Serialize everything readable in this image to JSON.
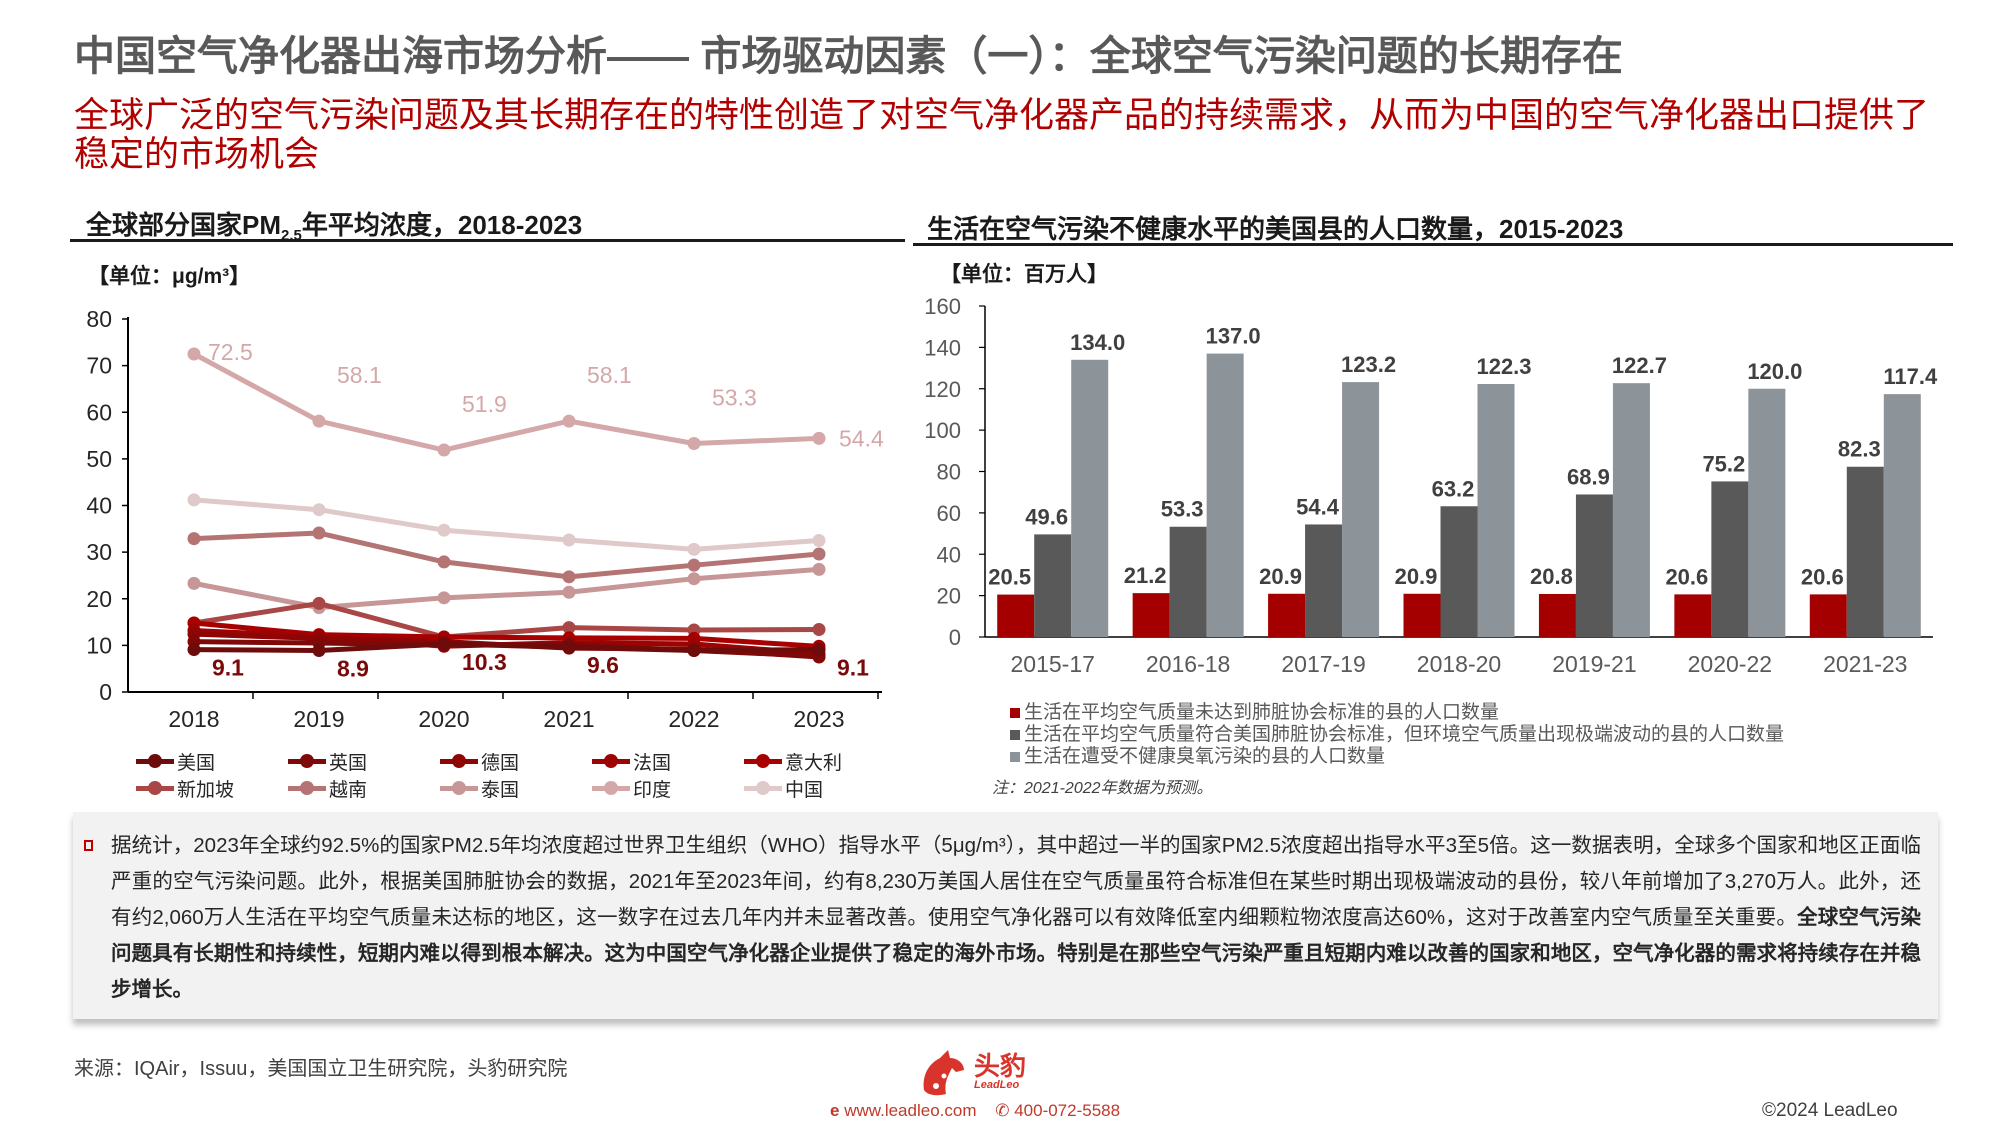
{
  "header": {
    "title": "中国空气净化器出海市场分析—— 市场驱动因素（一）：全球空气污染问题的长期存在",
    "subtitle": "全球广泛的空气污染问题及其长期存在的特性创造了对空气净化器产品的持续需求，从而为中国的空气净化器出口提供了稳定的市场机会"
  },
  "left_chart": {
    "title_pre": "全球部分国家PM",
    "title_sub": "2.5",
    "title_post": "年平均浓度，2018-2023",
    "unit": "【单位：μg/m³】"
  },
  "right_chart": {
    "title": "生活在空气污染不健康水平的美国县的人口数量，2015-2023",
    "unit": "【单位：百万人】",
    "note": "注：2021-2022年数据为预测。"
  },
  "chart_data": [
    {
      "type": "line",
      "title": "全球部分国家PM2.5年平均浓度，2018-2023",
      "ylabel": "【单位：μg/m³】",
      "ylim": [
        0,
        80
      ],
      "yticks": [
        0,
        10,
        20,
        30,
        40,
        50,
        60,
        70,
        80
      ],
      "categories": [
        "2018",
        "2019",
        "2020",
        "2021",
        "2022",
        "2023"
      ],
      "legend_position": "bottom",
      "series": [
        {
          "name": "美国",
          "color": "#6e0b0b",
          "values": [
            9.1,
            8.9,
            10.3,
            9.6,
            8.9,
            9.1
          ],
          "labels": [
            "9.1",
            "8.9",
            "10.3",
            "9.6",
            "",
            "9.1"
          ]
        },
        {
          "name": "英国",
          "color": "#7f0808",
          "values": [
            10.8,
            10.5,
            10.1,
            10.1,
            8.9,
            7.7
          ]
        },
        {
          "name": "德国",
          "color": "#8e0505",
          "values": [
            12.4,
            11.5,
            10.8,
            9.4,
            9.2,
            7.5
          ]
        },
        {
          "name": "法国",
          "color": "#9c0303",
          "values": [
            13.2,
            11.9,
            9.8,
            10.6,
            10.3,
            8.2
          ]
        },
        {
          "name": "意大利",
          "color": "#a80000",
          "values": [
            14.8,
            12.3,
            11.8,
            11.6,
            11.5,
            9.8
          ]
        },
        {
          "name": "新加坡",
          "color": "#a94646",
          "values": [
            14.8,
            19.0,
            11.8,
            13.8,
            13.3,
            13.4
          ]
        },
        {
          "name": "越南",
          "color": "#b47474",
          "values": [
            32.9,
            34.1,
            27.9,
            24.7,
            27.2,
            29.6
          ]
        },
        {
          "name": "泰国",
          "color": "#c79696",
          "values": [
            23.3,
            18.1,
            20.2,
            21.4,
            24.3,
            26.3
          ]
        },
        {
          "name": "印度",
          "color": "#d4a8a8",
          "values": [
            72.5,
            58.1,
            51.9,
            58.1,
            53.3,
            54.4
          ],
          "labels": [
            "72.5",
            "58.1",
            "51.9",
            "58.1",
            "53.3",
            "54.4"
          ]
        },
        {
          "name": "中国",
          "color": "#e0c9c9",
          "values": [
            41.2,
            39.1,
            34.7,
            32.6,
            30.6,
            32.5
          ]
        }
      ]
    },
    {
      "type": "bar",
      "title": "生活在空气污染不健康水平的美国县的人口数量，2015-2023",
      "ylabel": "【单位：百万人】",
      "ylim": [
        0,
        160
      ],
      "yticks": [
        0,
        20,
        40,
        60,
        80,
        100,
        120,
        140,
        160
      ],
      "categories": [
        "2015-17",
        "2016-18",
        "2017-19",
        "2018-20",
        "2019-21",
        "2020-22",
        "2021-23"
      ],
      "legend_position": "bottom",
      "series": [
        {
          "name": "生活在平均空气质量未达到肺脏协会标准的县的人口数量",
          "color": "#a50000",
          "values": [
            20.5,
            21.2,
            20.9,
            20.9,
            20.8,
            20.6,
            20.6
          ]
        },
        {
          "name": "生活在平均空气质量符合美国肺脏协会标准，但环境空气质量出现极端波动的县的人口数量",
          "color": "#595959",
          "values": [
            49.6,
            53.3,
            54.4,
            63.2,
            68.9,
            75.2,
            82.3
          ]
        },
        {
          "name": "生活在遭受不健康臭氧污染的县的人口数量",
          "color": "#8c9399",
          "values": [
            134.0,
            137.0,
            123.2,
            122.3,
            122.7,
            120.0,
            117.4
          ]
        }
      ]
    }
  ],
  "summary": {
    "plain": "据统计，2023年全球约92.5%的国家PM2.5年均浓度超过世界卫生组织（WHO）指导水平（5μg/m³），其中超过一半的国家PM2.5浓度超出指导水平3至5倍。这一数据表明，全球多个国家和地区正面临严重的空气污染问题。此外，根据美国肺脏协会的数据，2021年至2023年间，约有8,230万美国人居住在空气质量虽符合标准但在某些时期出现极端波动的县份，较八年前增加了3,270万人。此外，还有约2,060万人生活在平均空气质量未达标的地区，这一数字在过去几年内并未显著改善。使用空气净化器可以有效降低室内细颗粒物浓度高达60%，这对于改善室内空气质量至关重要。",
    "bold": "全球空气污染问题具有长期性和持续性，短期内难以得到根本解决。这为中国空气净化器企业提供了稳定的海外市场。特别是在那些空气污染严重且短期内难以改善的国家和地区，空气净化器的需求将持续存在并稳步增长。"
  },
  "footer": {
    "source": "来源：IQAir，Issuu，美国国立卫生研究院，头豹研究院",
    "logo_cn": "头豹",
    "logo_en": "LeadLeo",
    "website": "www.leadleo.com",
    "phone": "400-072-5588",
    "copyright": "©2024 LeadLeo",
    "brand_color": "#d9342b"
  }
}
